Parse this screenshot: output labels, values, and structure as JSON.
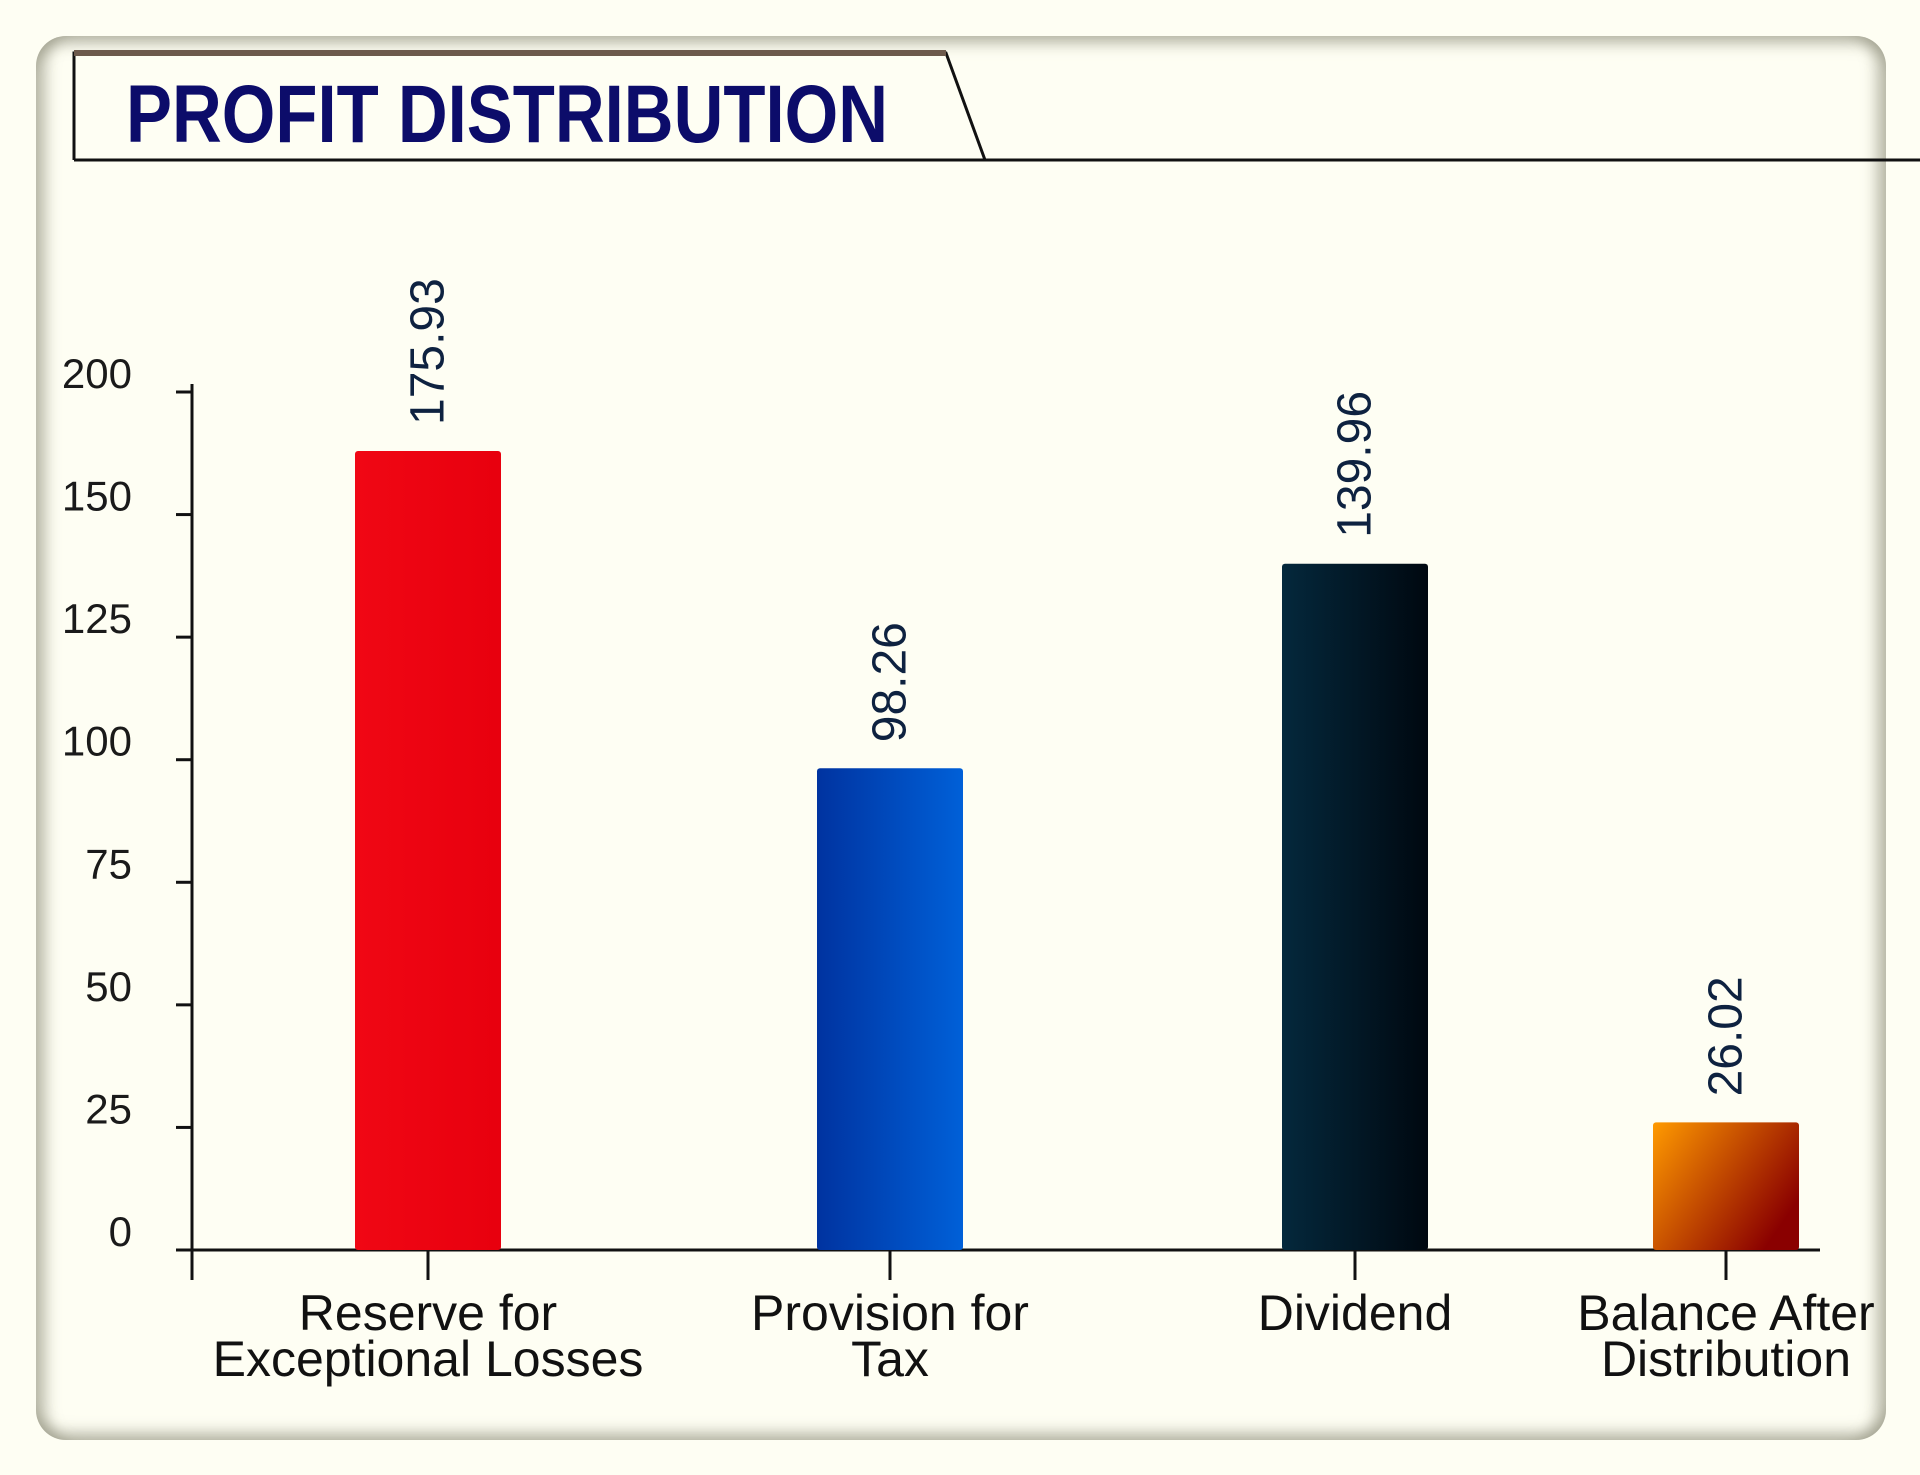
{
  "chart_data": {
    "type": "bar",
    "title": "PROFIT DISTRIBUTION",
    "xlabel": "",
    "ylabel": "",
    "categories": [
      [
        "Reserve for",
        "Exceptional Losses"
      ],
      [
        "Provision for",
        "Tax"
      ],
      [
        "Dividend"
      ],
      [
        "Balance After",
        "Distribution"
      ]
    ],
    "values": [
      175.93,
      98.26,
      139.96,
      26.02
    ],
    "value_labels": [
      "175.93",
      "98.26",
      "139.96",
      "26.02"
    ],
    "bar_colors": [
      [
        "#f00714",
        "#e8000e"
      ],
      [
        "#0033a0",
        "#0060d8"
      ],
      [
        "#04283c",
        "#000810"
      ],
      [
        "#ff9a00",
        "#8a0000"
      ]
    ],
    "y_ticks": [
      0,
      25,
      50,
      75,
      100,
      125,
      150,
      200
    ],
    "y_tick_labels": [
      "0",
      "25",
      "50",
      "75",
      "100",
      "125",
      "150",
      "200"
    ],
    "ylim": [
      0,
      200
    ],
    "grid": false,
    "legend": "none",
    "value_label_orientation": "vertical"
  }
}
